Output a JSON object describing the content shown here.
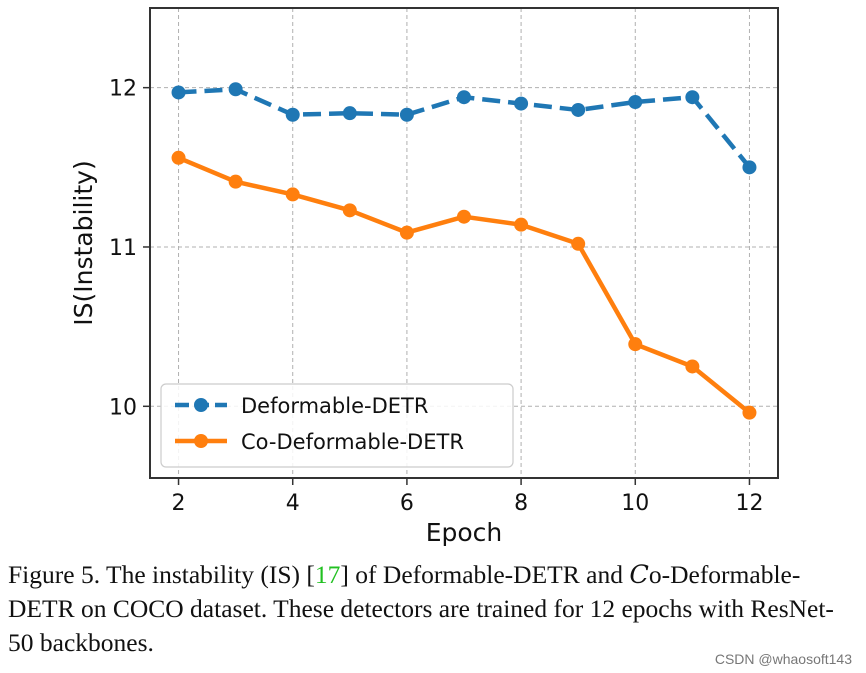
{
  "chart_data": {
    "type": "line",
    "title": "",
    "xlabel": "Epoch",
    "ylabel": "IS(Instability)",
    "x": [
      2,
      3,
      4,
      5,
      6,
      7,
      8,
      9,
      10,
      11,
      12
    ],
    "xlim": [
      1.5,
      12.5
    ],
    "ylim": [
      9.55,
      12.5
    ],
    "xticks": [
      2,
      4,
      6,
      8,
      10,
      12
    ],
    "yticks": [
      10,
      11,
      12
    ],
    "grid": true,
    "legend_position": "lower-left",
    "series": [
      {
        "name": "Deformable-DETR",
        "color": "#1f77b4",
        "linestyle": "dashed",
        "values": [
          11.97,
          11.99,
          11.83,
          11.84,
          11.83,
          11.94,
          11.9,
          11.86,
          11.91,
          11.94,
          11.5
        ]
      },
      {
        "name": "Co-Deformable-DETR",
        "color": "#ff7f0e",
        "linestyle": "solid",
        "values": [
          11.56,
          11.41,
          11.33,
          11.23,
          11.09,
          11.19,
          11.14,
          11.02,
          10.39,
          10.25,
          9.96
        ]
      }
    ]
  },
  "caption": {
    "prefix": "Figure 5. The instability (IS) [",
    "ref": "17",
    "middle": "] of Deformable-DETR and ",
    "co_letter": "C",
    "rest": "o-Deformable-DETR on COCO dataset. These detectors are trained for 12 epochs with ResNet-50 backbones."
  },
  "watermark": "CSDN @whaosoft143"
}
